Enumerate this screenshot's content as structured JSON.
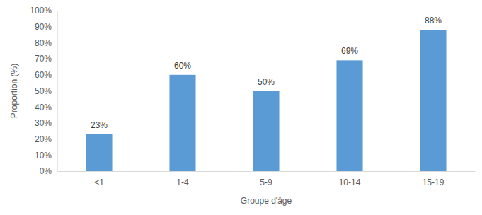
{
  "chart_data": {
    "type": "bar",
    "x_label": "Groupe d'âge",
    "y_label": "Proportion (%)",
    "categories": [
      "<1",
      "1-4",
      "5-9",
      "10-14",
      "15-19"
    ],
    "values": [
      23,
      60,
      50,
      69,
      88
    ],
    "value_labels": [
      "23%",
      "60%",
      "50%",
      "69%",
      "88%"
    ],
    "color": "#5b9bd5",
    "ylim": [
      0,
      100
    ],
    "yticks": [
      {
        "value": 0,
        "label": "0%"
      },
      {
        "value": 10,
        "label": "10%"
      },
      {
        "value": 20,
        "label": "20%"
      },
      {
        "value": 30,
        "label": "30%"
      },
      {
        "value": 40,
        "label": "40%"
      },
      {
        "value": 50,
        "label": "50%"
      },
      {
        "value": 60,
        "label": "60%"
      },
      {
        "value": 70,
        "label": "70%"
      },
      {
        "value": 80,
        "label": "80%"
      },
      {
        "value": 90,
        "label": "90%"
      },
      {
        "value": 100,
        "label": "100%"
      }
    ],
    "grid": false,
    "data_labels": true
  }
}
